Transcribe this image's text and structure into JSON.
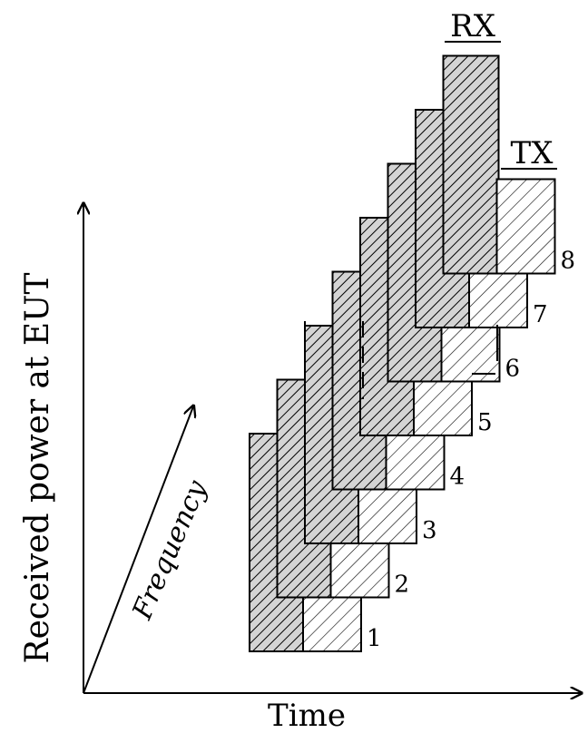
{
  "labels": {
    "rx": "RX",
    "tx": "TX",
    "y_axis": "Received power at EUT",
    "x_axis": "Time",
    "diagonal_axis": "Frequency"
  },
  "slots": [
    "1",
    "2",
    "3",
    "4",
    "5",
    "6",
    "7",
    "8"
  ]
}
